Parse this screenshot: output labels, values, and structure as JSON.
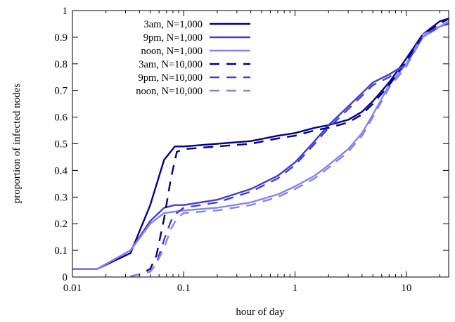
{
  "chart_data": {
    "type": "line",
    "title": "",
    "xlabel": "hour of day",
    "ylabel": "proportion of infected nodes",
    "xscale": "log",
    "xlim": [
      0.01,
      24
    ],
    "ylim": [
      0,
      1
    ],
    "grid": false,
    "legend_position": "top-left",
    "x_ticks": [
      {
        "value": 0.01,
        "label": "0.01"
      },
      {
        "value": 0.1,
        "label": "0.1"
      },
      {
        "value": 1,
        "label": "1"
      },
      {
        "value": 10,
        "label": "10"
      }
    ],
    "y_ticks": [
      {
        "value": 0,
        "label": "0"
      },
      {
        "value": 0.1,
        "label": "0.1"
      },
      {
        "value": 0.2,
        "label": "0.2"
      },
      {
        "value": 0.3,
        "label": "0.3"
      },
      {
        "value": 0.4,
        "label": "0.4"
      },
      {
        "value": 0.5,
        "label": "0.5"
      },
      {
        "value": 0.6,
        "label": "0.6"
      },
      {
        "value": 0.7,
        "label": "0.7"
      },
      {
        "value": 0.8,
        "label": "0.8"
      },
      {
        "value": 0.9,
        "label": "0.9"
      },
      {
        "value": 1,
        "label": "1"
      }
    ],
    "series": [
      {
        "name": "3am, N=1,000",
        "color": "#00008b",
        "style": "solid",
        "points": [
          [
            0.01,
            0.03
          ],
          [
            0.0167,
            0.03
          ],
          [
            0.0333,
            0.09
          ],
          [
            0.05,
            0.27
          ],
          [
            0.0667,
            0.44
          ],
          [
            0.0833,
            0.49
          ],
          [
            0.1,
            0.49
          ],
          [
            0.2,
            0.5
          ],
          [
            0.4,
            0.51
          ],
          [
            0.7,
            0.53
          ],
          [
            1,
            0.54
          ],
          [
            1.5,
            0.56
          ],
          [
            2,
            0.57
          ],
          [
            3,
            0.59
          ],
          [
            4,
            0.62
          ],
          [
            5,
            0.66
          ],
          [
            7,
            0.73
          ],
          [
            10,
            0.82
          ],
          [
            14,
            0.91
          ],
          [
            20,
            0.96
          ],
          [
            24,
            0.97
          ]
        ]
      },
      {
        "name": "9pm, N=1,000",
        "color": "#3f3fd8",
        "style": "solid",
        "points": [
          [
            0.01,
            0.03
          ],
          [
            0.0167,
            0.03
          ],
          [
            0.0333,
            0.1
          ],
          [
            0.05,
            0.21
          ],
          [
            0.0667,
            0.26
          ],
          [
            0.0833,
            0.27
          ],
          [
            0.1,
            0.27
          ],
          [
            0.2,
            0.29
          ],
          [
            0.4,
            0.33
          ],
          [
            0.7,
            0.38
          ],
          [
            1,
            0.43
          ],
          [
            1.5,
            0.51
          ],
          [
            2,
            0.57
          ],
          [
            3,
            0.64
          ],
          [
            4,
            0.69
          ],
          [
            5,
            0.73
          ],
          [
            7,
            0.76
          ],
          [
            10,
            0.8
          ],
          [
            14,
            0.9
          ],
          [
            20,
            0.94
          ],
          [
            24,
            0.95
          ]
        ]
      },
      {
        "name": "noon, N=1,000",
        "color": "#8484f0",
        "style": "solid",
        "points": [
          [
            0.01,
            0.03
          ],
          [
            0.0167,
            0.03
          ],
          [
            0.0333,
            0.1
          ],
          [
            0.05,
            0.2
          ],
          [
            0.0667,
            0.24
          ],
          [
            0.1,
            0.25
          ],
          [
            0.2,
            0.26
          ],
          [
            0.4,
            0.28
          ],
          [
            0.7,
            0.31
          ],
          [
            1,
            0.34
          ],
          [
            1.5,
            0.38
          ],
          [
            2,
            0.42
          ],
          [
            3,
            0.48
          ],
          [
            4,
            0.54
          ],
          [
            5,
            0.61
          ],
          [
            7,
            0.72
          ],
          [
            10,
            0.8
          ],
          [
            14,
            0.91
          ],
          [
            20,
            0.94
          ],
          [
            24,
            0.96
          ]
        ]
      },
      {
        "name": "3am, N=10,000",
        "color": "#00008b",
        "style": "dashed",
        "points": [
          [
            0.0333,
            0.003
          ],
          [
            0.04,
            0.01
          ],
          [
            0.05,
            0.03
          ],
          [
            0.0567,
            0.08
          ],
          [
            0.0667,
            0.22
          ],
          [
            0.0767,
            0.37
          ],
          [
            0.0867,
            0.47
          ],
          [
            0.1,
            0.48
          ],
          [
            0.2,
            0.49
          ],
          [
            0.4,
            0.5
          ],
          [
            0.7,
            0.52
          ],
          [
            1,
            0.53
          ],
          [
            1.5,
            0.55
          ],
          [
            2,
            0.56
          ],
          [
            3,
            0.58
          ],
          [
            4,
            0.61
          ],
          [
            5,
            0.65
          ],
          [
            7,
            0.72
          ],
          [
            10,
            0.81
          ],
          [
            14,
            0.91
          ],
          [
            20,
            0.95
          ],
          [
            24,
            0.97
          ]
        ]
      },
      {
        "name": "9pm, N=10,000",
        "color": "#3f3fd8",
        "style": "dashed",
        "points": [
          [
            0.0333,
            0.002
          ],
          [
            0.04,
            0.01
          ],
          [
            0.05,
            0.02
          ],
          [
            0.0567,
            0.05
          ],
          [
            0.0667,
            0.14
          ],
          [
            0.0767,
            0.21
          ],
          [
            0.0867,
            0.24
          ],
          [
            0.1,
            0.26
          ],
          [
            0.2,
            0.28
          ],
          [
            0.4,
            0.32
          ],
          [
            0.7,
            0.37
          ],
          [
            1,
            0.42
          ],
          [
            1.5,
            0.5
          ],
          [
            2,
            0.56
          ],
          [
            3,
            0.63
          ],
          [
            4,
            0.68
          ],
          [
            5,
            0.72
          ],
          [
            7,
            0.75
          ],
          [
            10,
            0.8
          ],
          [
            14,
            0.9
          ],
          [
            20,
            0.94
          ],
          [
            24,
            0.95
          ]
        ]
      },
      {
        "name": "noon, N=10,000",
        "color": "#8484f0",
        "style": "dashed",
        "points": [
          [
            0.0333,
            0.002
          ],
          [
            0.04,
            0.01
          ],
          [
            0.05,
            0.02
          ],
          [
            0.0567,
            0.05
          ],
          [
            0.0667,
            0.11
          ],
          [
            0.0767,
            0.18
          ],
          [
            0.0867,
            0.22
          ],
          [
            0.1,
            0.24
          ],
          [
            0.2,
            0.25
          ],
          [
            0.4,
            0.27
          ],
          [
            0.7,
            0.3
          ],
          [
            1,
            0.33
          ],
          [
            1.5,
            0.37
          ],
          [
            2,
            0.41
          ],
          [
            3,
            0.47
          ],
          [
            4,
            0.53
          ],
          [
            5,
            0.6
          ],
          [
            7,
            0.71
          ],
          [
            10,
            0.79
          ],
          [
            14,
            0.9
          ],
          [
            20,
            0.94
          ],
          [
            24,
            0.95
          ]
        ]
      }
    ]
  }
}
